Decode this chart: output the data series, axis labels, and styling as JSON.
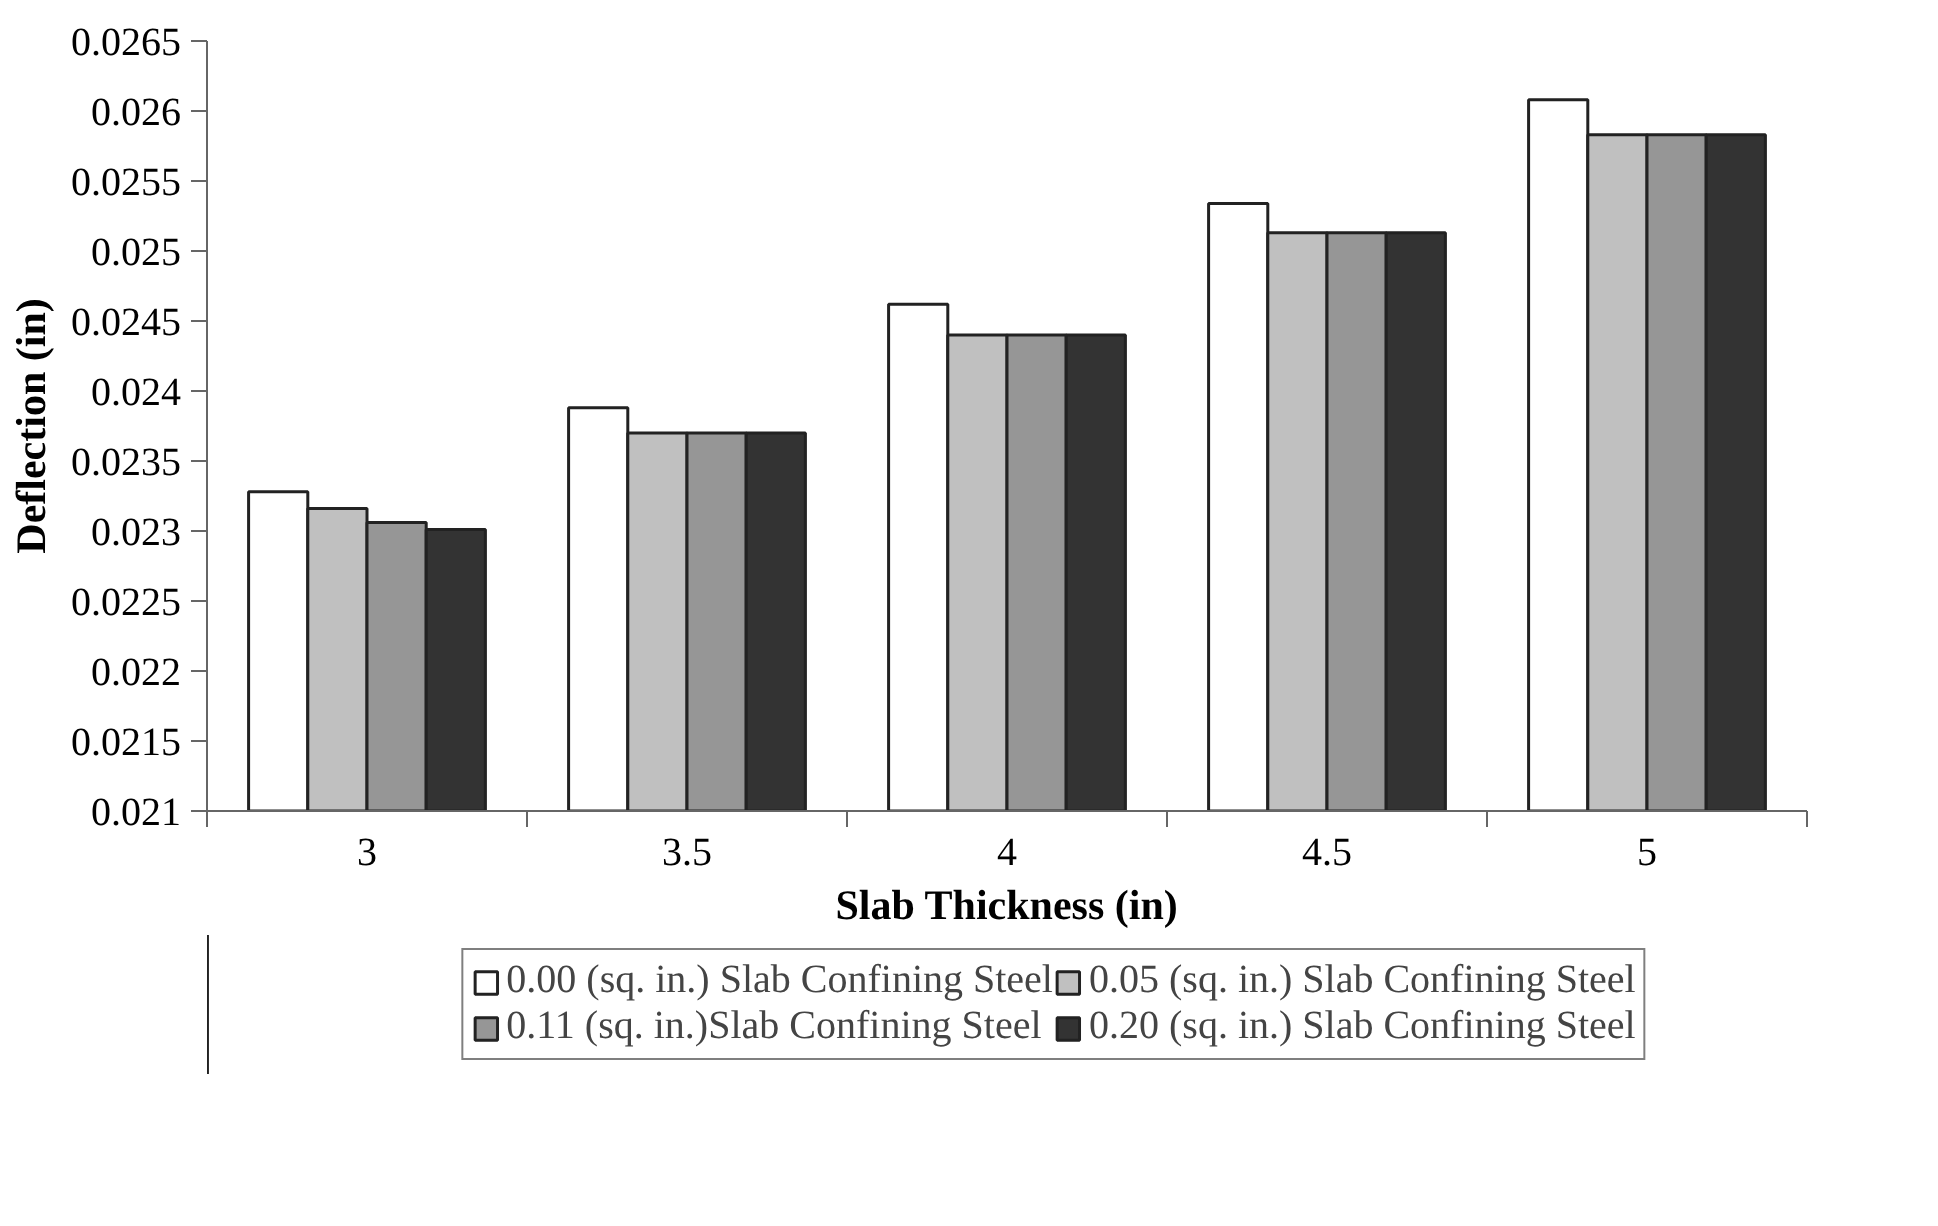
{
  "chart_data": {
    "type": "bar",
    "xlabel": "Slab Thickness (in)",
    "ylabel": "Deflection (in)",
    "categories": [
      "3",
      "3.5",
      "4",
      "4.5",
      "5"
    ],
    "series": [
      {
        "name": "0.00 (sq. in.) Slab Confining Steel",
        "color": "#ffffff",
        "values": [
          0.02328,
          0.02388,
          0.02462,
          0.02534,
          0.02608
        ]
      },
      {
        "name": "0.05 (sq. in.) Slab Confining Steel",
        "color": "#c0c0c0",
        "values": [
          0.02316,
          0.0237,
          0.0244,
          0.02513,
          0.02583
        ]
      },
      {
        "name": "0.11 (sq. in.)Slab Confining Steel",
        "color": "#969696",
        "values": [
          0.02306,
          0.0237,
          0.0244,
          0.02513,
          0.02583
        ]
      },
      {
        "name": "0.20 (sq. in.) Slab Confining Steel",
        "color": "#333333",
        "values": [
          0.02301,
          0.0237,
          0.0244,
          0.02513,
          0.02583
        ]
      }
    ],
    "ylim": [
      0.021,
      0.0265
    ],
    "yticks": [
      0.021,
      0.0215,
      0.022,
      0.0225,
      0.023,
      0.0235,
      0.024,
      0.0245,
      0.025,
      0.0255,
      0.026,
      0.0265
    ],
    "grid": false,
    "legend": "bottom"
  }
}
